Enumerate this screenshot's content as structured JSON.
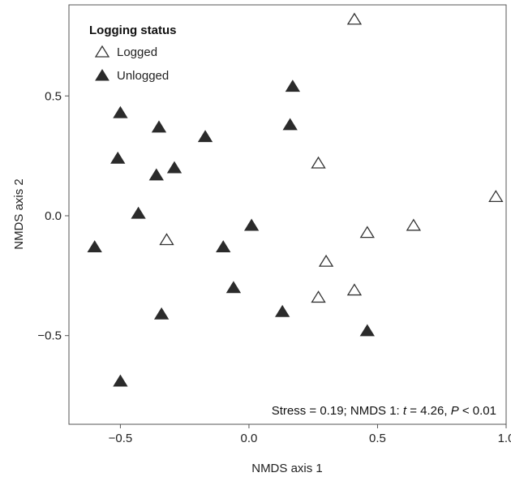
{
  "chart_data": {
    "type": "scatter",
    "xlabel": "NMDS axis 1",
    "ylabel": "NMDS axis 2",
    "xlim": [
      -0.7,
      1.0
    ],
    "ylim": [
      -0.87,
      0.88
    ],
    "xticks": [
      -0.5,
      0.0,
      0.5,
      1.0
    ],
    "yticks": [
      -0.5,
      0.0,
      0.5
    ],
    "xtick_labels": [
      "−0.5",
      "0.0",
      "0.5",
      "1.0"
    ],
    "ytick_labels": [
      "−0.5",
      "0.0",
      "0.5"
    ],
    "grid": false,
    "legend": {
      "title": "Logging status",
      "position": "top-left",
      "entries": [
        {
          "label": "Logged",
          "marker": "open-triangle"
        },
        {
          "label": "Unlogged",
          "marker": "filled-triangle"
        }
      ]
    },
    "annotation": {
      "prefix": "Stress = 0.19; NMDS 1: ",
      "t_symbol": "t",
      "t_text": " = 4.26, ",
      "p_symbol": "P",
      "p_text": " < 0.01"
    },
    "series": [
      {
        "name": "Logged",
        "marker": "open-triangle",
        "color": "#ffffff",
        "stroke": "#333333",
        "x": [
          0.41,
          0.27,
          0.96,
          -0.32,
          0.64,
          0.46,
          0.3,
          0.41,
          0.27
        ],
        "y": [
          0.82,
          0.22,
          0.08,
          -0.1,
          -0.04,
          -0.07,
          -0.19,
          -0.31,
          -0.34
        ]
      },
      {
        "name": "Unlogged",
        "marker": "filled-triangle",
        "color": "#2b2b2b",
        "stroke": "#2b2b2b",
        "x": [
          0.17,
          -0.5,
          0.16,
          -0.35,
          -0.17,
          -0.51,
          -0.29,
          -0.36,
          -0.43,
          -0.6,
          0.01,
          -0.1,
          -0.06,
          0.13,
          -0.34,
          0.46,
          -0.5
        ],
        "y": [
          0.54,
          0.43,
          0.38,
          0.37,
          0.33,
          0.24,
          0.2,
          0.17,
          0.01,
          -0.13,
          -0.04,
          -0.13,
          -0.3,
          -0.4,
          -0.41,
          -0.48,
          -0.69
        ]
      }
    ]
  }
}
